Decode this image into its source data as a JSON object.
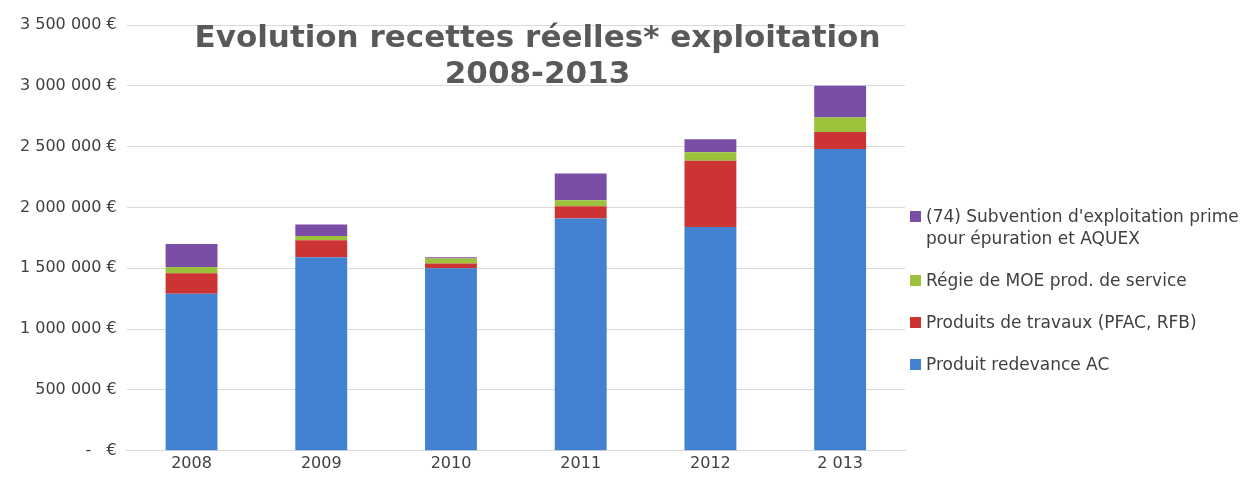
{
  "chart_data": {
    "type": "bar",
    "title": "Evolution recettes réelles* exploitation 2008-2013",
    "categories": [
      "2008",
      "2009",
      "2010",
      "2011",
      "2012",
      "2 013"
    ],
    "stacked": true,
    "series": [
      {
        "name": "Produit redevance AC",
        "color": "#4282d0",
        "values": [
          1290000,
          1590000,
          1500000,
          1910000,
          1840000,
          2480000
        ]
      },
      {
        "name": "Produits de travaux (PFAC, RFB)",
        "color": "#cc3333",
        "values": [
          170000,
          140000,
          40000,
          100000,
          545000,
          140000
        ]
      },
      {
        "name": "Régie de MOE prod. de service",
        "color": "#9cc23c",
        "values": [
          50000,
          35000,
          40000,
          50000,
          70000,
          120000
        ]
      },
      {
        "name": "(74) Subvention d'exploitation prime pour épuration et AQUEX",
        "color": "#7a4ea6",
        "values": [
          190000,
          95000,
          10000,
          220000,
          105000,
          260000
        ]
      }
    ],
    "ylim": [
      0,
      3500000
    ],
    "yticks": [
      {
        "value": 0,
        "label": "-   €"
      },
      {
        "value": 500000,
        "label": "500 000 €"
      },
      {
        "value": 1000000,
        "label": "1 000 000 €"
      },
      {
        "value": 1500000,
        "label": "1 500 000 €"
      },
      {
        "value": 2000000,
        "label": "2 000 000 €"
      },
      {
        "value": 2500000,
        "label": "2 500 000 €"
      },
      {
        "value": 3000000,
        "label": "3 000 000 €"
      },
      {
        "value": 3500000,
        "label": "3 500 000 €"
      }
    ],
    "grid": "y",
    "legend": "right"
  }
}
